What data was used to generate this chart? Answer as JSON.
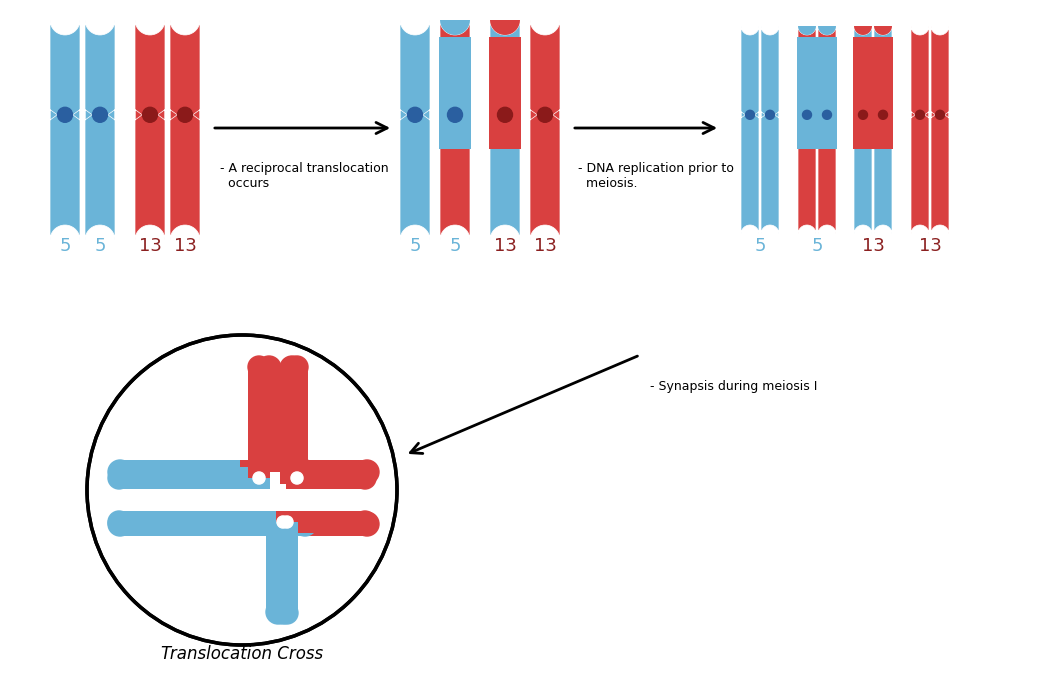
{
  "blue": "#6ab4d8",
  "red": "#d94040",
  "blue_centromere": "#2a5fa0",
  "red_centromere": "#8b1a1a",
  "label_5_color": "#6ab4d8",
  "label_13_color": "#8b2020",
  "background": "#ffffff",
  "annotation1": "- A reciprocal translocation\n  occurs",
  "annotation2": "- DNA replication prior to\n  meiosis.",
  "annotation3": "- Synapsis during meiosis I",
  "circle_label": "Translocation Cross"
}
